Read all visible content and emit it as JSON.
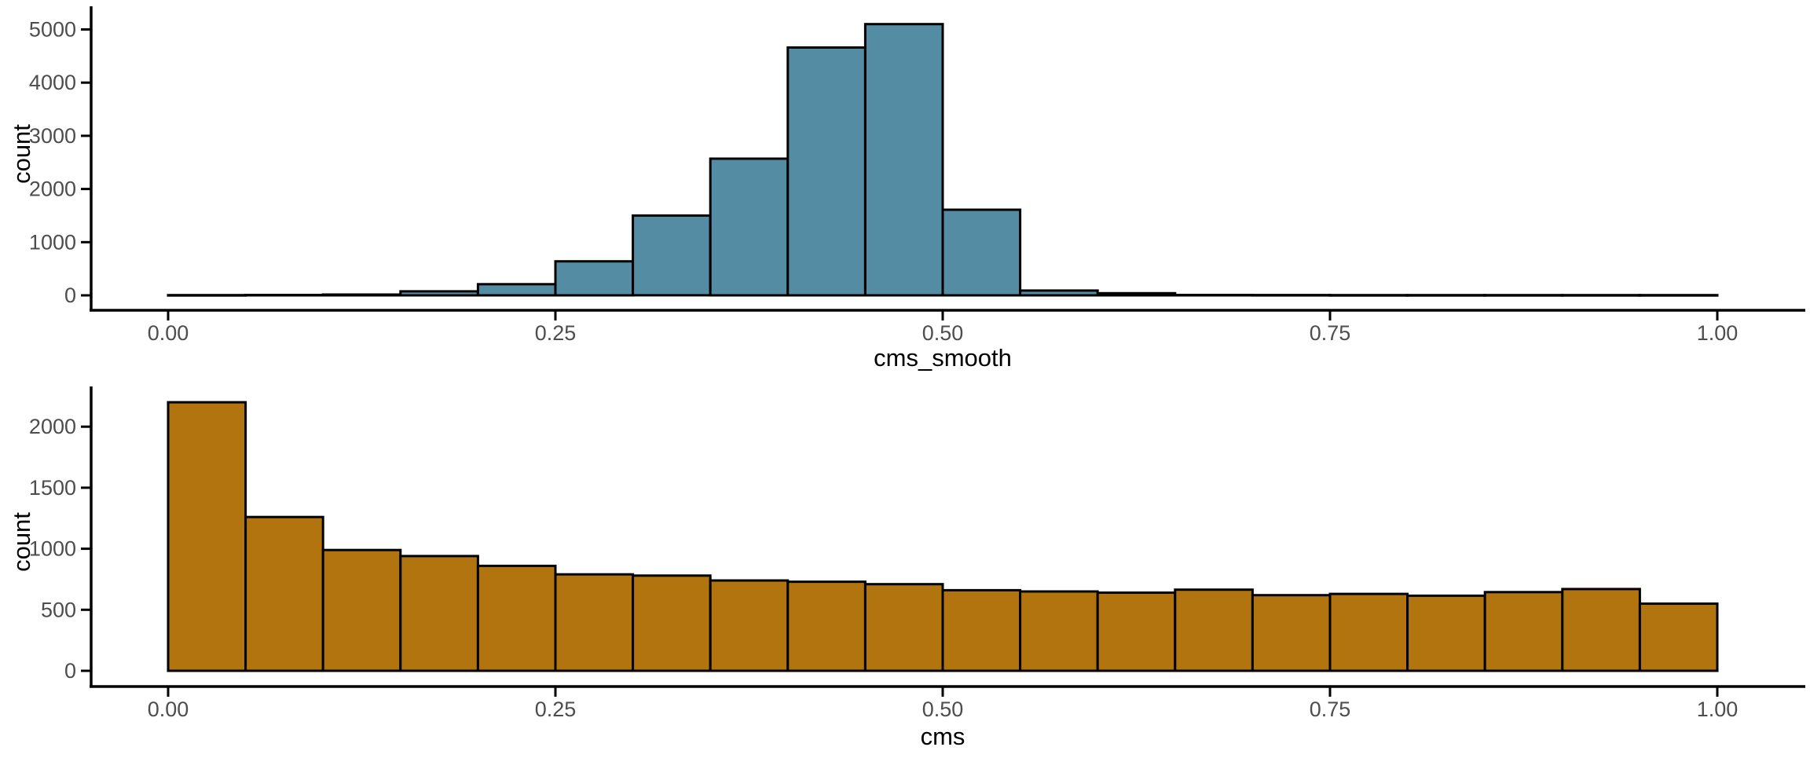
{
  "figure": {
    "background": "#ffffff",
    "axis_color": "#000000",
    "tick_label_color": "#4d4d4d",
    "title_color": "#000000"
  },
  "chart_data": [
    {
      "type": "bar",
      "subtype": "histogram",
      "title": "",
      "xlabel": "cms_smooth",
      "ylabel": "count",
      "fill_color": "#548CA4",
      "stroke_color": "#000000",
      "bin_start": 0.0,
      "bin_width": 0.05,
      "counts": [
        5,
        8,
        15,
        75,
        210,
        640,
        1500,
        2570,
        4660,
        5100,
        1610,
        90,
        40,
        8,
        6,
        5,
        5,
        5,
        5,
        5
      ],
      "x_ticks": [
        0.0,
        0.25,
        0.5,
        0.75,
        1.0
      ],
      "x_tick_labels": [
        "0.00",
        "0.25",
        "0.50",
        "0.75",
        "1.00"
      ],
      "y_ticks": [
        0,
        1000,
        2000,
        3000,
        4000,
        5000
      ],
      "y_tick_labels": [
        "0",
        "1000",
        "2000",
        "3000",
        "4000",
        "5000"
      ],
      "xlim": [
        0.0,
        1.0
      ],
      "ylim": [
        0,
        5400
      ],
      "grid": false,
      "legend": false
    },
    {
      "type": "bar",
      "subtype": "histogram",
      "title": "",
      "xlabel": "cms",
      "ylabel": "count",
      "fill_color": "#B2740F",
      "stroke_color": "#000000",
      "bin_start": 0.0,
      "bin_width": 0.05,
      "counts": [
        2200,
        1260,
        990,
        940,
        860,
        790,
        780,
        740,
        730,
        710,
        660,
        650,
        640,
        665,
        620,
        630,
        615,
        645,
        670,
        550
      ],
      "x_ticks": [
        0.0,
        0.25,
        0.5,
        0.75,
        1.0
      ],
      "x_tick_labels": [
        "0.00",
        "0.25",
        "0.50",
        "0.75",
        "1.00"
      ],
      "y_ticks": [
        0,
        500,
        1000,
        1500,
        2000
      ],
      "y_tick_labels": [
        "0",
        "500",
        "1000",
        "1500",
        "2000"
      ],
      "xlim": [
        0.0,
        1.0
      ],
      "ylim": [
        0,
        2330
      ],
      "grid": false,
      "legend": false
    }
  ]
}
